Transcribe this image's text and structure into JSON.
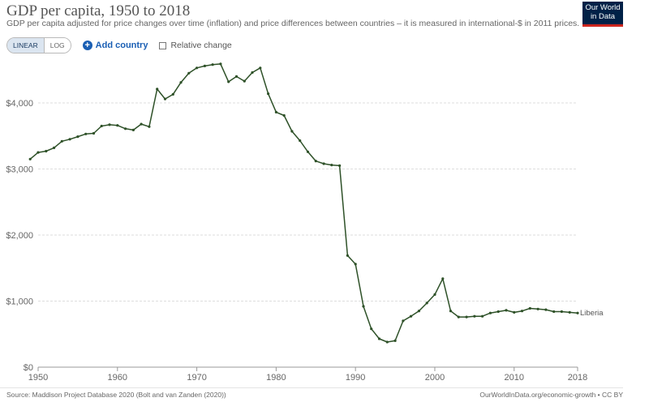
{
  "header": {
    "title": "GDP per capita, 1950 to 2018",
    "subtitle": "GDP per capita adjusted for price changes over time (inflation) and price differences between countries – it is measured in international-$ in 2011 prices.",
    "logo_line1": "Our World",
    "logo_line2": "in Data"
  },
  "controls": {
    "linear_label": "LINEAR",
    "log_label": "LOG",
    "add_country_label": "Add country",
    "relative_change_label": "Relative change"
  },
  "footer": {
    "source": "Source: Maddison Project Database 2020 (Bolt and van Zanden (2020))",
    "url": "OurWorldInData.org/economic-growth • CC BY"
  },
  "colors": {
    "line": "#2e5128",
    "grid": "#dddddd",
    "accent": "#1a5fb4"
  },
  "chart_data": {
    "type": "line",
    "title": "GDP per capita, 1950 to 2018",
    "x_ticks": [
      1950,
      1960,
      1970,
      1980,
      1990,
      2000,
      2010,
      2018
    ],
    "y_ticks": [
      0,
      1000,
      2000,
      3000,
      4000
    ],
    "y_tick_labels": [
      "$0",
      "$1,000",
      "$2,000",
      "$3,000",
      "$4,000"
    ],
    "xlim": [
      1950,
      2018
    ],
    "ylim": [
      0,
      4700
    ],
    "grid": "horizontal",
    "series": [
      {
        "name": "Liberia",
        "color": "#2e5128",
        "x": [
          1949,
          1950,
          1951,
          1952,
          1953,
          1954,
          1955,
          1956,
          1957,
          1958,
          1959,
          1960,
          1961,
          1962,
          1963,
          1964,
          1965,
          1966,
          1967,
          1968,
          1969,
          1970,
          1971,
          1972,
          1973,
          1974,
          1975,
          1976,
          1977,
          1978,
          1979,
          1980,
          1981,
          1982,
          1983,
          1984,
          1985,
          1986,
          1987,
          1988,
          1989,
          1990,
          1991,
          1992,
          1993,
          1994,
          1995,
          1996,
          1997,
          1998,
          1999,
          2000,
          2001,
          2002,
          2003,
          2004,
          2005,
          2006,
          2007,
          2008,
          2009,
          2010,
          2011,
          2012,
          2013,
          2014,
          2015,
          2016,
          2017,
          2018
        ],
        "y": [
          3150,
          3250,
          3270,
          3320,
          3420,
          3450,
          3490,
          3530,
          3540,
          3650,
          3670,
          3660,
          3610,
          3590,
          3680,
          3640,
          4210,
          4060,
          4130,
          4310,
          4450,
          4530,
          4560,
          4580,
          4590,
          4320,
          4400,
          4330,
          4460,
          4530,
          4140,
          3860,
          3810,
          3570,
          3430,
          3260,
          3120,
          3080,
          3060,
          3050,
          1690,
          1560,
          920,
          580,
          430,
          380,
          400,
          700,
          770,
          850,
          970,
          1100,
          1340,
          850,
          760,
          760,
          770,
          770,
          820,
          840,
          860,
          830,
          850,
          890,
          880,
          870,
          840,
          840,
          830,
          820
        ]
      }
    ]
  }
}
